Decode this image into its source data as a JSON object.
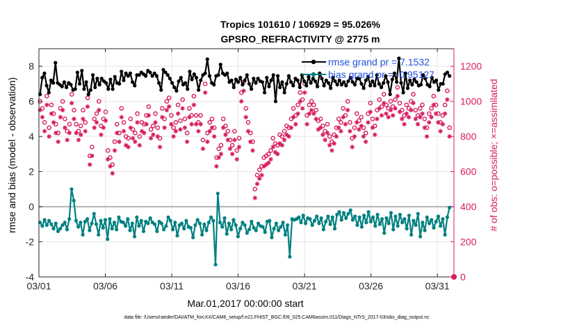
{
  "chart_data": {
    "type": "line",
    "title": "Tropics 101610 / 106929 = 95.026%",
    "subtitle": "GPSRO_REFRACTIVITY @ 2775 m",
    "xlabel": "Mar.01,2017 00:00:00 start",
    "ylabel_left": "rmse and bias (model - observation)",
    "ylabel_right": "# of obs: o=possible; ×=assimilated",
    "footer": "data file: /Users/raeder/DAI/ATM_forcXX/CAM6_setup/f.e21.FHIST_BGC.f09_025.CAM6assim.011/Diags_NTrS_2017-03/obs_diag_output.nc",
    "x_tick_labels": [
      "03/01",
      "03/06",
      "03/11",
      "03/16",
      "03/21",
      "03/26",
      "03/31"
    ],
    "x_ticks_day": [
      0,
      5,
      10,
      15,
      20,
      25,
      30
    ],
    "xlim_day": [
      0,
      31.25
    ],
    "ylim_left": [
      -4,
      9
    ],
    "y_ticks_left": [
      -4,
      -2,
      0,
      2,
      4,
      6,
      8
    ],
    "ylim_right": [
      0,
      1300
    ],
    "y_ticks_right": [
      0,
      200,
      400,
      600,
      800,
      1000,
      1200
    ],
    "grid": true,
    "legend_position": "top-right",
    "colors": {
      "rmse": "#000000",
      "bias": "#008080",
      "obs": "#d81b60",
      "legend_text": "#1f4fe0",
      "zero_line": "#b3b3b3",
      "grid": "#e6e6e6"
    },
    "series": [
      {
        "name": "rmse grand pr = 7.1532",
        "axis": "left",
        "marker": "filled-circle",
        "values": [
          6.4,
          7.35,
          7.6,
          6.9,
          6.5,
          7.2,
          7.05,
          8.2,
          7.05,
          6.95,
          6.85,
          7.1,
          6.8,
          7.05,
          6.95,
          6.65,
          6.7,
          7.65,
          7.0,
          7.75,
          6.7,
          7.1,
          6.4,
          6.65,
          7.5,
          6.8,
          7.3,
          6.95,
          7.3,
          7.15,
          7.05,
          6.7,
          7.25,
          6.7,
          7.4,
          7.05,
          7.0,
          7.7,
          7.2,
          7.6,
          7.45,
          7.6,
          7.1,
          6.9,
          7.5,
          7.5,
          7.65,
          7.55,
          7.45,
          7.75,
          7.65,
          7.45,
          7.6,
          7.45,
          7.05,
          6.65,
          7.8,
          7.65,
          7.5,
          7.3,
          7.05,
          6.8,
          6.6,
          7.15,
          7.35,
          6.95,
          7.05,
          6.7,
          7.7,
          7.25,
          7.55,
          7.35,
          6.65,
          7.2,
          7.5,
          7.6,
          8.4,
          7.45,
          7.05,
          6.95,
          7.45,
          7.5,
          8.1,
          7.6,
          7.5,
          7.6,
          7.1,
          7.2,
          6.8,
          7.25,
          7.1,
          7.35,
          6.95,
          7.2,
          7.5,
          7.0,
          6.7,
          7.3,
          7.05,
          7.3,
          7.15,
          7.1,
          6.5,
          7.35,
          6.85,
          7.2,
          7.5,
          6.0,
          7.45,
          6.8,
          7.1,
          6.5,
          7.0,
          7.45,
          7.1,
          6.9,
          7.3,
          7.2,
          6.8,
          7.5,
          7.15,
          6.9,
          7.4,
          7.05,
          7.3,
          7.15,
          6.85,
          7.6,
          7.3,
          6.9,
          7.2,
          7.05,
          6.75,
          7.35,
          7.15,
          6.95,
          7.2,
          6.95,
          7.1,
          6.9,
          7.15,
          7.35,
          7.1,
          6.95,
          7.3,
          7.3,
          7.0,
          6.75,
          7.2,
          7.4,
          6.9,
          7.15,
          6.9,
          7.5,
          7.0,
          6.8,
          7.05,
          7.45,
          7.1,
          6.4,
          7.25,
          7.6,
          7.1,
          8.45,
          7.05,
          6.5,
          7.6,
          6.75,
          7.2,
          6.95,
          7.25,
          7.1,
          6.9,
          6.95,
          7.5,
          7.3,
          6.95,
          6.85,
          7.35,
          7.1,
          7.2,
          6.65,
          7.0,
          7.0,
          7.55,
          7.65,
          7.45
        ]
      },
      {
        "name": "bias grand pr = -0.95127",
        "axis": "left",
        "marker": "filled-circle",
        "values": [
          -0.9,
          -1.1,
          -0.75,
          -1.05,
          -0.8,
          -1.0,
          -1.25,
          -0.95,
          -1.4,
          -1.25,
          -1.05,
          -0.9,
          -1.3,
          -0.7,
          1.0,
          0.35,
          -0.8,
          -1.15,
          -0.9,
          -1.6,
          -0.85,
          -0.7,
          -1.35,
          -0.95,
          -0.4,
          -1.0,
          -1.6,
          -0.8,
          -1.2,
          -0.75,
          -1.85,
          -0.7,
          -1.25,
          -0.9,
          -1.3,
          -0.6,
          -0.85,
          -0.9,
          -1.1,
          -0.7,
          -1.35,
          -0.95,
          -1.7,
          -0.6,
          -1.1,
          -0.8,
          -1.4,
          -0.85,
          -0.95,
          -0.65,
          -0.9,
          -1.0,
          -1.4,
          -0.85,
          -0.95,
          -1.3,
          -1.1,
          -0.6,
          -0.8,
          -1.3,
          -0.9,
          -1.65,
          -1.05,
          -0.95,
          -1.25,
          -0.8,
          -1.15,
          -1.2,
          -1.75,
          -1.05,
          -0.75,
          -0.95,
          -1.6,
          -1.0,
          -1.35,
          -0.9,
          -0.6,
          -0.8,
          -3.3,
          0.75,
          -0.9,
          -1.15,
          -0.65,
          -1.55,
          -0.95,
          -1.3,
          -0.75,
          -1.05,
          -1.7,
          -1.25,
          -0.9,
          -1.05,
          -1.5,
          -1.3,
          -0.85,
          -1.2,
          -1.35,
          -0.95,
          -1.1,
          -1.15,
          -1.45,
          -0.85,
          -0.8,
          -1.75,
          -1.25,
          -0.95,
          -1.35,
          -1.15,
          -0.9,
          -1.6,
          -1.05,
          -2.85,
          -0.7,
          -0.75,
          -0.7,
          -0.6,
          -0.9,
          -0.5,
          -0.95,
          -0.65,
          -0.7,
          -1.05,
          -0.8,
          -0.55,
          -0.95,
          -0.65,
          -1.3,
          -0.85,
          -0.55,
          -1.0,
          -0.6,
          -1.25,
          -0.45,
          -0.3,
          -0.75,
          -0.35,
          -0.65,
          -0.4,
          -0.2,
          -0.75,
          -0.55,
          -1.05,
          -0.6,
          -1.15,
          -0.5,
          -0.9,
          -0.3,
          -0.85,
          -0.6,
          -1.1,
          -0.45,
          -1.0,
          -0.7,
          -1.5,
          -0.65,
          -0.95,
          -0.35,
          -1.3,
          -0.55,
          -1.1,
          -0.45,
          -0.9,
          -0.7,
          -1.25,
          -0.5,
          -1.6,
          -0.8,
          -1.05,
          -0.4,
          -1.7,
          -0.9,
          -1.35,
          -0.6,
          -0.95,
          -0.75,
          -1.2,
          -0.85,
          -0.55,
          -1.1,
          -0.7,
          -1.6,
          -0.6,
          -0.05
        ]
      },
      {
        "name": "# possible (o)",
        "axis": "right",
        "marker": "open-circle",
        "values": [
          1000,
          960,
          880,
          1030,
          850,
          980,
          930,
          870,
          820,
          960,
          1000,
          900,
          830,
          870,
          1040,
          950,
          870,
          830,
          860,
          950,
          880,
          1020,
          690,
          740,
          900,
          930,
          1000,
          860,
          900,
          940,
          720,
          680,
          640,
          770,
          870,
          820,
          960,
          880,
          800,
          790,
          900,
          840,
          820,
          930,
          800,
          880,
          870,
          920,
          970,
          840,
          860,
          930,
          850,
          790,
          960,
          900,
          1000,
          1020,
          920,
          850,
          880,
          980,
          890,
          1010,
          900,
          820,
          960,
          920,
          1030,
          920,
          880,
          920,
          780,
          1100,
          820,
          880,
          900,
          850,
          680,
          730,
          750,
          900,
          860,
          830,
          780,
          750,
          830,
          720,
          790,
          1050,
          1110,
          960,
          880,
          820,
          770,
          500,
          580,
          610,
          630,
          680,
          690,
          700,
          720,
          790,
          760,
          750,
          810,
          800,
          830,
          860,
          850,
          900,
          960,
          920,
          980,
          1050,
          1010,
          1100,
          920,
          980,
          1000,
          980,
          950,
          890,
          900,
          860,
          830,
          870,
          800,
          770,
          810,
          850,
          900,
          880,
          960,
          920,
          1000,
          880,
          790,
          850,
          930,
          890,
          910,
          850,
          820,
          930,
          990,
          900,
          860,
          950,
          1010,
          970,
          1040,
          980,
          960,
          1000,
          970,
          1010,
          1080,
          990,
          950,
          920,
          980,
          960,
          1000,
          1040,
          950,
          920,
          960,
          980,
          900,
          850,
          930,
          960,
          1030,
          980,
          930,
          880,
          920,
          980,
          1060,
          850
        ]
      },
      {
        "name": "# assimilated (×)",
        "axis": "right",
        "marker": "asterisk",
        "values": [
          950,
          910,
          830,
          980,
          800,
          930,
          880,
          820,
          770,
          910,
          950,
          850,
          780,
          820,
          990,
          900,
          820,
          780,
          810,
          900,
          830,
          970,
          640,
          690,
          850,
          880,
          950,
          810,
          850,
          890,
          670,
          630,
          590,
          720,
          820,
          770,
          910,
          830,
          750,
          740,
          850,
          790,
          770,
          880,
          750,
          830,
          820,
          870,
          920,
          790,
          810,
          880,
          800,
          740,
          910,
          850,
          950,
          970,
          870,
          800,
          830,
          930,
          840,
          960,
          850,
          770,
          910,
          870,
          980,
          870,
          830,
          870,
          730,
          1050,
          770,
          830,
          850,
          800,
          630,
          680,
          700,
          850,
          810,
          780,
          730,
          700,
          780,
          670,
          740,
          1000,
          1060,
          910,
          830,
          770,
          720,
          450,
          530,
          560,
          580,
          630,
          640,
          650,
          670,
          740,
          710,
          700,
          760,
          750,
          780,
          810,
          800,
          850,
          910,
          870,
          930,
          1000,
          960,
          1050,
          870,
          930,
          950,
          930,
          900,
          840,
          850,
          810,
          780,
          820,
          750,
          720,
          760,
          800,
          850,
          830,
          910,
          870,
          950,
          830,
          740,
          800,
          880,
          840,
          860,
          800,
          770,
          880,
          940,
          850,
          810,
          900,
          960,
          920,
          990,
          930,
          910,
          950,
          920,
          960,
          1030,
          940,
          900,
          870,
          930,
          910,
          950,
          990,
          900,
          870,
          910,
          930,
          850,
          800,
          880,
          910,
          980,
          930,
          880,
          830,
          870,
          930,
          1010,
          800
        ]
      }
    ],
    "extra_points": [
      {
        "name": "bottom-right marker",
        "axis": "right",
        "x_day": 31.25,
        "value": 0
      }
    ]
  }
}
